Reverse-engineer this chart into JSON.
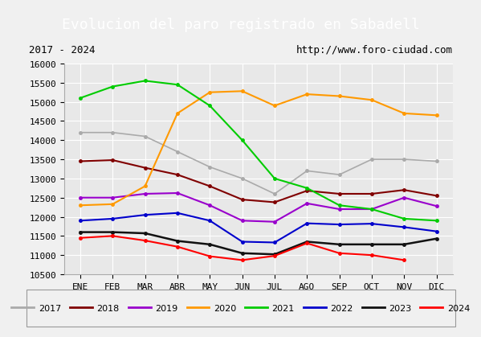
{
  "title": "Evolucion del paro registrado en Sabadell",
  "subtitle_left": "2017 - 2024",
  "subtitle_right": "http://www.foro-ciudad.com",
  "months": [
    "ENE",
    "FEB",
    "MAR",
    "ABR",
    "MAY",
    "JUN",
    "JUL",
    "AGO",
    "SEP",
    "OCT",
    "NOV",
    "DIC"
  ],
  "ylim": [
    10500,
    16000
  ],
  "yticks": [
    10500,
    11000,
    11500,
    12000,
    12500,
    13000,
    13500,
    14000,
    14500,
    15000,
    15500,
    16000
  ],
  "series": {
    "2017": {
      "color": "#aaaaaa",
      "linewidth": 1.2,
      "data": [
        14200,
        14200,
        14100,
        13700,
        13300,
        13000,
        12600,
        13200,
        13100,
        13500,
        13500,
        13450
      ]
    },
    "2018": {
      "color": "#800000",
      "linewidth": 1.5,
      "data": [
        13450,
        13480,
        13280,
        13100,
        12800,
        12450,
        12380,
        12680,
        12600,
        12600,
        12700,
        12550
      ]
    },
    "2019": {
      "color": "#9900cc",
      "linewidth": 1.5,
      "data": [
        12500,
        12500,
        12600,
        12620,
        12300,
        11900,
        11870,
        12350,
        12200,
        12200,
        12500,
        12280
      ]
    },
    "2020": {
      "color": "#ff9900",
      "linewidth": 1.5,
      "data": [
        12300,
        12330,
        12800,
        14700,
        15250,
        15280,
        14900,
        15200,
        15150,
        15050,
        14700,
        14650
      ]
    },
    "2021": {
      "color": "#00cc00",
      "linewidth": 1.5,
      "data": [
        15100,
        15400,
        15550,
        15450,
        14900,
        14000,
        13000,
        12750,
        12300,
        12200,
        11950,
        11900
      ]
    },
    "2022": {
      "color": "#0000cc",
      "linewidth": 1.5,
      "data": [
        11900,
        11950,
        12050,
        12100,
        11900,
        11350,
        11330,
        11830,
        11800,
        11820,
        11730,
        11620
      ]
    },
    "2023": {
      "color": "#111111",
      "linewidth": 1.8,
      "data": [
        11600,
        11600,
        11570,
        11370,
        11280,
        11050,
        11020,
        11350,
        11280,
        11280,
        11280,
        11430
      ]
    },
    "2024": {
      "color": "#ff0000",
      "linewidth": 1.5,
      "data": [
        11450,
        11500,
        11380,
        11220,
        10970,
        10870,
        10980,
        11310,
        11050,
        11000,
        10870,
        null
      ]
    }
  },
  "background_color": "#f0f0f0",
  "plot_bg_color": "#e8e8e8",
  "title_bg_color": "#4472c4",
  "title_color": "#ffffff",
  "grid_color": "#ffffff",
  "legend_years": [
    "2017",
    "2018",
    "2019",
    "2020",
    "2021",
    "2022",
    "2023",
    "2024"
  ]
}
